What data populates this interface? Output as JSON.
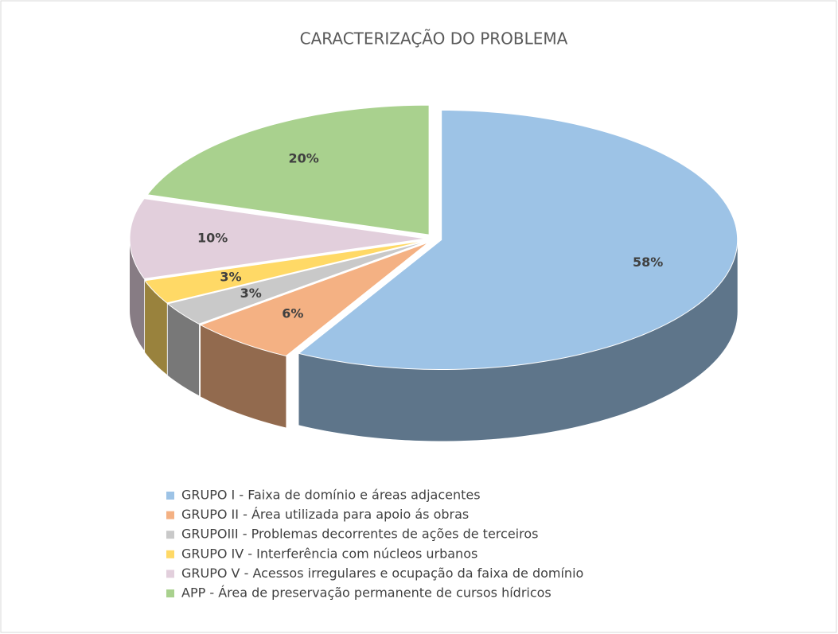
{
  "chart_data": {
    "type": "pie3d",
    "title": "CARACTERIZAÇÃO DO PROBLEMA",
    "categories": [
      "GRUPO I - Faixa de domínio e áreas adjacentes",
      "GRUPO II - Área utilizada para apoio ás obras",
      "GRUPOIII - Problemas decorrentes de ações de terceiros",
      "GRUPO IV - Interferência com núcleos urbanos",
      "GRUPO V - Acessos irregulares e ocupação da faixa de domínio",
      "APP - Área de preservação permanente de cursos hídricos"
    ],
    "values": [
      58,
      6,
      3,
      3,
      10,
      20
    ],
    "value_labels": [
      "58%",
      "6%",
      "3%",
      "3%",
      "10%",
      "20%"
    ],
    "colors": [
      "#9dc3e6",
      "#f4b183",
      "#c9c9c9",
      "#ffd966",
      "#e2cfdc",
      "#a9d18e"
    ],
    "legend": "bottom"
  }
}
